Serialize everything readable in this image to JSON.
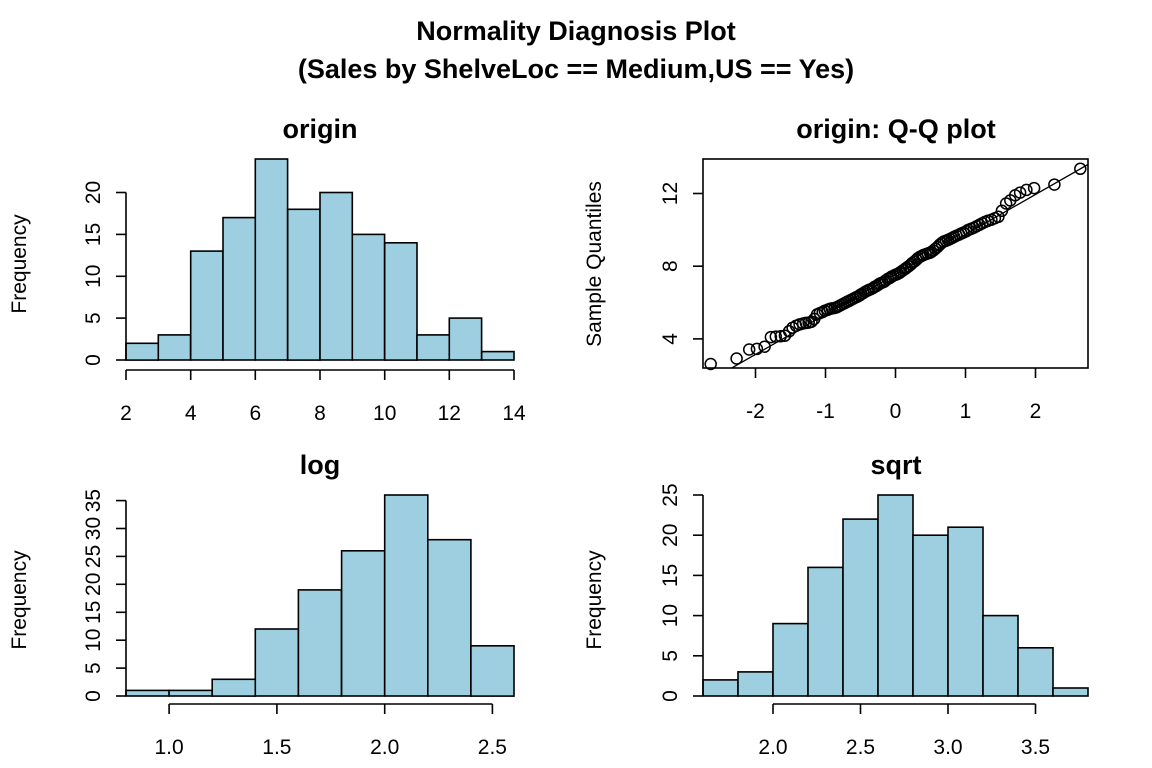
{
  "figure": {
    "title_line1": "Normality Diagnosis Plot",
    "title_line2": "(Sales by ShelveLoc == Medium,US == Yes)",
    "bar_fill": "#9ecfe0",
    "bar_stroke": "#000000"
  },
  "chart_data": [
    {
      "type": "bar",
      "title": "origin",
      "xlabel": "",
      "ylabel": "Frequency",
      "bin_edges": [
        2,
        3,
        4,
        5,
        6,
        7,
        8,
        9,
        10,
        11,
        12,
        13,
        14
      ],
      "values": [
        2,
        3,
        13,
        17,
        24,
        18,
        20,
        15,
        14,
        3,
        5,
        1
      ],
      "xlim": [
        2,
        14
      ],
      "ylim": [
        0,
        24
      ],
      "x_ticks": [
        2,
        4,
        6,
        8,
        10,
        12,
        14
      ],
      "y_ticks": [
        0,
        5,
        10,
        15,
        20
      ],
      "x_tick_labels": [
        "2",
        "4",
        "6",
        "8",
        "10",
        "12",
        "14"
      ],
      "y_tick_labels": [
        "0",
        "5",
        "10",
        "15",
        "20"
      ]
    },
    {
      "type": "scatter",
      "title": "origin: Q-Q plot",
      "xlabel": "",
      "ylabel": "Sample Quantiles",
      "xlim": [
        -2.75,
        2.75
      ],
      "ylim": [
        2.4,
        13.9
      ],
      "x_ticks": [
        -2,
        -1,
        0,
        1,
        2
      ],
      "y_ticks": [
        4,
        8,
        12
      ],
      "x_tick_labels": [
        "-2",
        "-1",
        "0",
        "1",
        "2"
      ],
      "y_tick_labels": [
        "4",
        "8",
        "12"
      ],
      "reference_line": {
        "intercept": 7.55,
        "slope": 2.2
      },
      "points": [
        [
          -2.64,
          2.62
        ],
        [
          -2.27,
          2.92
        ],
        [
          -2.09,
          3.42
        ],
        [
          -1.98,
          3.45
        ],
        [
          -1.87,
          3.57
        ],
        [
          -1.78,
          4.1
        ],
        [
          -1.71,
          4.13
        ],
        [
          -1.64,
          4.15
        ],
        [
          -1.58,
          4.18
        ],
        [
          -1.52,
          4.42
        ],
        [
          -1.47,
          4.62
        ],
        [
          -1.42,
          4.72
        ],
        [
          -1.37,
          4.8
        ],
        [
          -1.32,
          4.85
        ],
        [
          -1.28,
          4.88
        ],
        [
          -1.24,
          4.9
        ],
        [
          -1.2,
          4.95
        ],
        [
          -1.16,
          5.1
        ],
        [
          -1.12,
          5.35
        ],
        [
          -1.08,
          5.42
        ],
        [
          -1.04,
          5.48
        ],
        [
          -1.01,
          5.55
        ],
        [
          -0.97,
          5.6
        ],
        [
          -0.94,
          5.65
        ],
        [
          -0.91,
          5.68
        ],
        [
          -0.87,
          5.7
        ],
        [
          -0.84,
          5.74
        ],
        [
          -0.81,
          5.8
        ],
        [
          -0.78,
          5.86
        ],
        [
          -0.75,
          5.92
        ],
        [
          -0.72,
          5.98
        ],
        [
          -0.69,
          6.04
        ],
        [
          -0.66,
          6.1
        ],
        [
          -0.63,
          6.16
        ],
        [
          -0.6,
          6.22
        ],
        [
          -0.57,
          6.28
        ],
        [
          -0.54,
          6.33
        ],
        [
          -0.51,
          6.4
        ],
        [
          -0.49,
          6.46
        ],
        [
          -0.46,
          6.52
        ],
        [
          -0.43,
          6.6
        ],
        [
          -0.4,
          6.66
        ],
        [
          -0.38,
          6.7
        ],
        [
          -0.35,
          6.74
        ],
        [
          -0.32,
          6.8
        ],
        [
          -0.3,
          6.86
        ],
        [
          -0.27,
          6.92
        ],
        [
          -0.24,
          7.0
        ],
        [
          -0.22,
          7.05
        ],
        [
          -0.19,
          7.1
        ],
        [
          -0.16,
          7.15
        ],
        [
          -0.14,
          7.22
        ],
        [
          -0.11,
          7.3
        ],
        [
          -0.08,
          7.36
        ],
        [
          -0.06,
          7.42
        ],
        [
          -0.03,
          7.48
        ],
        [
          0.0,
          7.53
        ],
        [
          0.03,
          7.58
        ],
        [
          0.06,
          7.64
        ],
        [
          0.08,
          7.7
        ],
        [
          0.11,
          7.78
        ],
        [
          0.14,
          7.86
        ],
        [
          0.16,
          7.92
        ],
        [
          0.19,
          8.0
        ],
        [
          0.22,
          8.1
        ],
        [
          0.24,
          8.18
        ],
        [
          0.27,
          8.26
        ],
        [
          0.3,
          8.36
        ],
        [
          0.32,
          8.44
        ],
        [
          0.35,
          8.52
        ],
        [
          0.38,
          8.58
        ],
        [
          0.4,
          8.62
        ],
        [
          0.43,
          8.66
        ],
        [
          0.46,
          8.7
        ],
        [
          0.49,
          8.74
        ],
        [
          0.51,
          8.78
        ],
        [
          0.54,
          8.86
        ],
        [
          0.57,
          8.96
        ],
        [
          0.6,
          9.06
        ],
        [
          0.63,
          9.18
        ],
        [
          0.66,
          9.28
        ],
        [
          0.69,
          9.36
        ],
        [
          0.72,
          9.4
        ],
        [
          0.75,
          9.45
        ],
        [
          0.78,
          9.5
        ],
        [
          0.81,
          9.56
        ],
        [
          0.84,
          9.62
        ],
        [
          0.87,
          9.68
        ],
        [
          0.91,
          9.74
        ],
        [
          0.94,
          9.8
        ],
        [
          0.97,
          9.85
        ],
        [
          1.01,
          9.92
        ],
        [
          1.04,
          10.0
        ],
        [
          1.08,
          10.06
        ],
        [
          1.12,
          10.12
        ],
        [
          1.16,
          10.2
        ],
        [
          1.2,
          10.28
        ],
        [
          1.24,
          10.36
        ],
        [
          1.28,
          10.44
        ],
        [
          1.32,
          10.5
        ],
        [
          1.37,
          10.56
        ],
        [
          1.42,
          10.64
        ],
        [
          1.47,
          10.72
        ],
        [
          1.52,
          11.05
        ],
        [
          1.58,
          11.45
        ],
        [
          1.64,
          11.62
        ],
        [
          1.71,
          11.9
        ],
        [
          1.78,
          12.05
        ],
        [
          1.87,
          12.2
        ],
        [
          1.98,
          12.3
        ],
        [
          2.27,
          12.49
        ],
        [
          2.64,
          13.36
        ]
      ]
    },
    {
      "type": "bar",
      "title": "log",
      "xlabel": "",
      "ylabel": "Frequency",
      "bin_edges": [
        0.8,
        1.0,
        1.2,
        1.4,
        1.6,
        1.8,
        2.0,
        2.2,
        2.4,
        2.6
      ],
      "values": [
        1,
        1,
        3,
        12,
        19,
        26,
        36,
        28,
        9
      ],
      "xlim": [
        0.8,
        2.6
      ],
      "ylim": [
        0,
        36
      ],
      "x_ticks": [
        1.0,
        1.5,
        2.0,
        2.5
      ],
      "y_ticks": [
        0,
        5,
        10,
        15,
        20,
        25,
        30,
        35
      ],
      "x_tick_labels": [
        "1.0",
        "1.5",
        "2.0",
        "2.5"
      ],
      "y_tick_labels": [
        "0",
        "5",
        "10",
        "15",
        "20",
        "25",
        "30",
        "35"
      ]
    },
    {
      "type": "bar",
      "title": "sqrt",
      "xlabel": "",
      "ylabel": "Frequency",
      "bin_edges": [
        1.6,
        1.8,
        2.0,
        2.2,
        2.4,
        2.6,
        2.8,
        3.0,
        3.2,
        3.4,
        3.6,
        3.8
      ],
      "values": [
        2,
        3,
        9,
        16,
        22,
        25,
        20,
        21,
        10,
        6,
        1
      ],
      "xlim": [
        1.6,
        3.8
      ],
      "ylim": [
        0,
        25
      ],
      "x_ticks": [
        2.0,
        2.5,
        3.0,
        3.5
      ],
      "y_ticks": [
        0,
        5,
        10,
        15,
        20,
        25
      ],
      "x_tick_labels": [
        "2.0",
        "2.5",
        "3.0",
        "3.5"
      ],
      "y_tick_labels": [
        "0",
        "5",
        "10",
        "15",
        "20",
        "25"
      ]
    }
  ]
}
